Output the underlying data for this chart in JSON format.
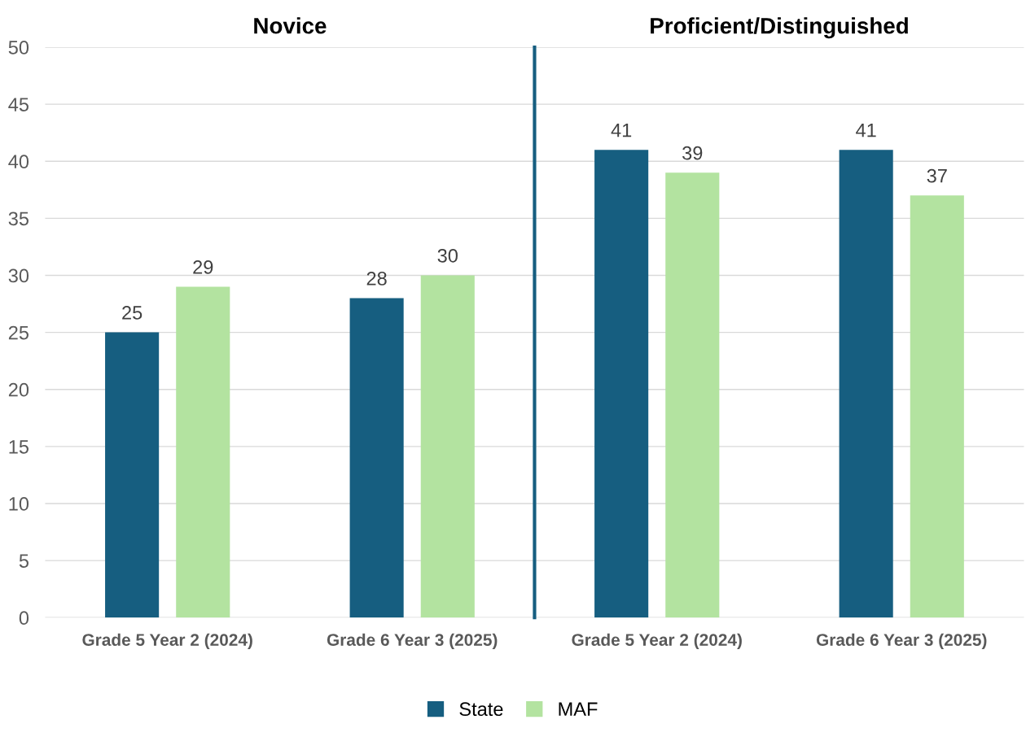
{
  "chart_data": [
    {
      "type": "bar",
      "title": "Novice",
      "categories": [
        "Grade 5 Year 2 (2024)",
        "Grade 6 Year 3 (2025)"
      ],
      "series": [
        {
          "name": "State",
          "color": "#165e80",
          "values": [
            25,
            28
          ]
        },
        {
          "name": "MAF",
          "color": "#b3e3a0",
          "values": [
            29,
            30
          ]
        }
      ],
      "ylim": [
        0,
        50
      ],
      "yticks": [
        0,
        5,
        10,
        15,
        20,
        25,
        30,
        35,
        40,
        45,
        50
      ],
      "grid": "y",
      "data_labels": true,
      "legend": "bottom"
    },
    {
      "type": "bar",
      "title": "Proficient/Distinguished",
      "categories": [
        "Grade 5 Year 2 (2024)",
        "Grade 6 Year 3 (2025)"
      ],
      "series": [
        {
          "name": "State",
          "color": "#165e80",
          "values": [
            41,
            41
          ]
        },
        {
          "name": "MAF",
          "color": "#b3e3a0",
          "values": [
            39,
            37
          ]
        }
      ],
      "ylim": [
        0,
        50
      ],
      "yticks": [
        0,
        5,
        10,
        15,
        20,
        25,
        30,
        35,
        40,
        45,
        50
      ],
      "grid": "y",
      "data_labels": true,
      "tick_labels": "x"
    }
  ]
}
